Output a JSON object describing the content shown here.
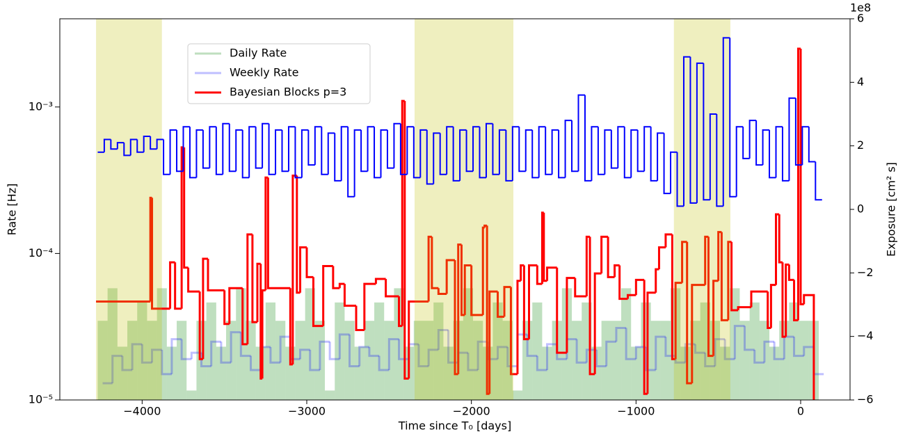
{
  "chart_data": {
    "type": "step",
    "x_label": "Time since T₀ [days]",
    "y_label": "Rate [Hz]",
    "y2_label": "Exposure [cm² s]",
    "y2_label_color": "#0000ff",
    "y2_offset_label": "1e8",
    "log_y": true,
    "xlim": [
      -4500,
      300
    ],
    "xticks": [
      {
        "value": -4000,
        "label": "−4000"
      },
      {
        "value": -3000,
        "label": "−3000"
      },
      {
        "value": -2000,
        "label": "−2000"
      },
      {
        "value": -1000,
        "label": "−1000"
      },
      0
    ],
    "ylim": [
      1e-05,
      0.004
    ],
    "yticks": [
      {
        "value": 1e-05,
        "label": "10⁻⁵"
      },
      {
        "value": 0.0001,
        "label": "10⁻⁴"
      },
      {
        "value": 0.001,
        "label": "10⁻³"
      }
    ],
    "y2lim": [
      -6,
      6
    ],
    "y2ticks": [
      {
        "value": -6,
        "label": "−6"
      },
      {
        "value": -4,
        "label": "−4"
      },
      {
        "value": -2,
        "label": "−2"
      },
      0,
      2,
      4,
      6
    ],
    "legend_loc": "upper left",
    "shade_color": "#bfbf00",
    "shade_alpha": 0.25,
    "shaded_regions": [
      [
        -4280,
        -3880
      ],
      [
        -2345,
        -1745
      ],
      [
        -770,
        -427
      ]
    ],
    "series": [
      {
        "name": "Daily Rate",
        "color": "#008000",
        "alpha": 0.25,
        "style": "fill",
        "x": [
          -4270,
          -4210,
          -4150,
          -4090,
          -4030,
          -3970,
          -3910,
          -3850,
          -3790,
          -3730,
          -3670,
          -3610,
          -3550,
          -3490,
          -3430,
          -3370,
          -3310,
          -3250,
          -3190,
          -3130,
          -3070,
          -3010,
          -2950,
          -2890,
          -2830,
          -2770,
          -2710,
          -2650,
          -2590,
          -2530,
          -2470,
          -2410,
          -2350,
          -2290,
          -2230,
          -2170,
          -2110,
          -2050,
          -1990,
          -1930,
          -1870,
          -1810,
          -1750,
          -1690,
          -1630,
          -1570,
          -1510,
          -1450,
          -1390,
          -1330,
          -1270,
          -1210,
          -1150,
          -1090,
          -1030,
          -970,
          -910,
          -850,
          -790,
          -730,
          -670,
          -610,
          -550,
          -490,
          -430,
          -370,
          -310,
          -250,
          -190,
          -130,
          -70,
          -10,
          50
        ],
        "values": [
          3.47e-05,
          5.79e-05,
          2.31e-05,
          3.47e-05,
          4.63e-05,
          3.47e-05,
          5.79e-05,
          2.31e-05,
          3.47e-05,
          1.16e-05,
          3.47e-05,
          4.63e-05,
          2.31e-05,
          3.47e-05,
          5.79e-05,
          3.47e-05,
          2.31e-05,
          4.63e-05,
          3.47e-05,
          2.31e-05,
          3.47e-05,
          5.79e-05,
          3.47e-05,
          1.16e-05,
          4.63e-05,
          3.47e-05,
          2.31e-05,
          3.47e-05,
          4.63e-05,
          3.47e-05,
          5.79e-05,
          2.31e-05,
          3.47e-05,
          3.47e-05,
          4.63e-05,
          2.31e-05,
          3.47e-05,
          5.79e-05,
          3.47e-05,
          2.31e-05,
          4.63e-05,
          3.47e-05,
          1.16e-05,
          3.47e-05,
          4.63e-05,
          2.31e-05,
          3.47e-05,
          5.79e-05,
          3.47e-05,
          4.63e-05,
          2.31e-05,
          3.47e-05,
          3.47e-05,
          5.79e-05,
          2.31e-05,
          4.63e-05,
          3.47e-05,
          3.47e-05,
          5.79e-05,
          2.31e-05,
          3.47e-05,
          4.63e-05,
          3.47e-05,
          2.31e-05,
          5.79e-05,
          3.47e-05,
          4.63e-05,
          3.47e-05,
          2.31e-05,
          3.47e-05,
          4.63e-05,
          3.47e-05,
          3.47e-05
        ]
      },
      {
        "name": "Weekly Rate",
        "color": "#0000ff",
        "alpha": 0.25,
        "style": "line",
        "x": [
          -4240,
          -4180,
          -4120,
          -4060,
          -4000,
          -3940,
          -3880,
          -3820,
          -3760,
          -3700,
          -3640,
          -3580,
          -3520,
          -3460,
          -3400,
          -3340,
          -3280,
          -3220,
          -3160,
          -3100,
          -3040,
          -2980,
          -2920,
          -2860,
          -2800,
          -2740,
          -2680,
          -2620,
          -2560,
          -2500,
          -2440,
          -2380,
          -2320,
          -2260,
          -2200,
          -2140,
          -2080,
          -2020,
          -1960,
          -1900,
          -1840,
          -1780,
          -1720,
          -1660,
          -1600,
          -1540,
          -1480,
          -1420,
          -1360,
          -1300,
          -1240,
          -1180,
          -1120,
          -1060,
          -1000,
          -940,
          -880,
          -820,
          -760,
          -700,
          -640,
          -580,
          -520,
          -460,
          -400,
          -340,
          -280,
          -220,
          -160,
          -100,
          -40,
          20,
          80
        ],
        "values": [
          1.3e-05,
          2e-05,
          1.6e-05,
          2.4e-05,
          1.8e-05,
          2.2e-05,
          1.5e-05,
          2.6e-05,
          1.9e-05,
          2.1e-05,
          1.7e-05,
          2.5e-05,
          1.8e-05,
          2.9e-05,
          2e-05,
          1.6e-05,
          2.3e-05,
          1.8e-05,
          2.7e-05,
          1.9e-05,
          2.2e-05,
          1.6e-05,
          2.5e-05,
          1.9e-05,
          2.8e-05,
          1.7e-05,
          2.3e-05,
          2e-05,
          1.6e-05,
          2.6e-05,
          1.9e-05,
          2.4e-05,
          1.7e-05,
          2.2e-05,
          3e-05,
          1.8e-05,
          2.1e-05,
          1.6e-05,
          2.5e-05,
          1.9e-05,
          2.3e-05,
          1.7e-05,
          2.8e-05,
          2e-05,
          1.6e-05,
          2.4e-05,
          1.9e-05,
          2.6e-05,
          1.8e-05,
          2.2e-05,
          1.7e-05,
          2.5e-05,
          3.1e-05,
          1.9e-05,
          2.3e-05,
          1.6e-05,
          2.7e-05,
          2e-05,
          1.8e-05,
          2.4e-05,
          2.1e-05,
          1.7e-05,
          2.6e-05,
          1.9e-05,
          3.2e-05,
          2.2e-05,
          1.8e-05,
          2.5e-05,
          1.9e-05,
          2.7e-05,
          2e-05,
          2.3e-05,
          1.5e-05
        ]
      },
      {
        "name": "Bayesian Blocks p=3",
        "color": "#ff0000",
        "alpha": 1,
        "style": "blocks",
        "edges": [
          -4280,
          -3950,
          -3940,
          -3830,
          -3800,
          -3760,
          -3745,
          -3720,
          -3650,
          -3630,
          -3600,
          -3500,
          -3470,
          -3390,
          -3360,
          -3330,
          -3300,
          -3280,
          -3270,
          -3250,
          -3235,
          -3100,
          -3085,
          -3060,
          -3040,
          -3000,
          -2960,
          -2900,
          -2840,
          -2800,
          -2770,
          -2700,
          -2650,
          -2580,
          -2520,
          -2440,
          -2420,
          -2405,
          -2380,
          -2260,
          -2240,
          -2200,
          -2150,
          -2100,
          -2080,
          -2060,
          -2040,
          -2000,
          -1930,
          -1920,
          -1905,
          -1890,
          -1840,
          -1800,
          -1760,
          -1720,
          -1700,
          -1680,
          -1650,
          -1600,
          -1570,
          -1560,
          -1540,
          -1480,
          -1420,
          -1370,
          -1300,
          -1280,
          -1250,
          -1210,
          -1170,
          -1130,
          -1100,
          -1050,
          -1000,
          -950,
          -930,
          -880,
          -860,
          -820,
          -780,
          -760,
          -720,
          -690,
          -660,
          -580,
          -560,
          -530,
          -500,
          -480,
          -440,
          -420,
          -380,
          -300,
          -200,
          -180,
          -150,
          -130,
          -110,
          -90,
          -70,
          -40,
          -15,
          0,
          20,
          80
        ],
        "values": [
          4.7e-05,
          0.00024,
          4.2e-05,
          8.7e-05,
          4.2e-05,
          0.00053,
          8e-05,
          5.5e-05,
          1.9e-05,
          9.2e-05,
          5.6e-05,
          3.3e-05,
          5.8e-05,
          2.4e-05,
          0.000135,
          3.4e-05,
          8.5e-05,
          1.4e-05,
          5.6e-05,
          0.00033,
          5.8e-05,
          1.75e-05,
          0.00034,
          5.4e-05,
          0.00011,
          6.9e-05,
          3.2e-05,
          8.2e-05,
          5.8e-05,
          6.2e-05,
          4.4e-05,
          3e-05,
          6.2e-05,
          6.7e-05,
          5.1e-05,
          3.2e-05,
          0.0011,
          1.4e-05,
          4.7e-05,
          0.00013,
          5.8e-05,
          5.3e-05,
          9e-05,
          1.5e-05,
          0.000115,
          3.8e-05,
          8.3e-05,
          3.8e-05,
          0.00015,
          0.000155,
          1.1e-05,
          5.5e-05,
          3.7e-05,
          5.9e-05,
          1.5e-05,
          6.5e-05,
          8.3e-05,
          2.6e-05,
          8.3e-05,
          6.2e-05,
          0.00019,
          6.5e-05,
          8e-05,
          2.1e-05,
          6.8e-05,
          5.1e-05,
          0.00013,
          1.5e-05,
          7.3e-05,
          0.00013,
          6.9e-05,
          8.3e-05,
          4.9e-05,
          5.2e-05,
          6.6e-05,
          1.1e-05,
          5.4e-05,
          7.8e-05,
          0.00011,
          0.000135,
          1.9e-05,
          6.3e-05,
          0.00012,
          1.3e-05,
          6.1e-05,
          0.00013,
          2e-05,
          6.5e-05,
          0.00014,
          3.5e-05,
          0.00012,
          4.1e-05,
          4.3e-05,
          5.5e-05,
          3.1e-05,
          6.1e-05,
          0.000185,
          8.7e-05,
          2.7e-05,
          8.4e-05,
          6.6e-05,
          3.5e-05,
          0.0025,
          4.5e-05,
          5.2e-05
        ]
      },
      {
        "axis": "y2",
        "color": "#0000ff",
        "alpha": 1,
        "style": "line",
        "x": [
          -4270,
          -4230,
          -4190,
          -4150,
          -4110,
          -4070,
          -4030,
          -3990,
          -3950,
          -3910,
          -3870,
          -3830,
          -3790,
          -3750,
          -3710,
          -3670,
          -3630,
          -3590,
          -3550,
          -3510,
          -3470,
          -3430,
          -3390,
          -3350,
          -3310,
          -3270,
          -3230,
          -3190,
          -3150,
          -3110,
          -3070,
          -3030,
          -2990,
          -2950,
          -2910,
          -2870,
          -2830,
          -2790,
          -2750,
          -2710,
          -2670,
          -2630,
          -2590,
          -2550,
          -2510,
          -2470,
          -2430,
          -2390,
          -2350,
          -2310,
          -2270,
          -2230,
          -2190,
          -2150,
          -2110,
          -2070,
          -2030,
          -1990,
          -1950,
          -1910,
          -1870,
          -1830,
          -1790,
          -1750,
          -1710,
          -1670,
          -1630,
          -1590,
          -1550,
          -1510,
          -1470,
          -1430,
          -1390,
          -1350,
          -1310,
          -1270,
          -1230,
          -1190,
          -1150,
          -1110,
          -1070,
          -1030,
          -990,
          -950,
          -910,
          -870,
          -830,
          -790,
          -750,
          -710,
          -670,
          -630,
          -590,
          -550,
          -510,
          -470,
          -430,
          -390,
          -350,
          -310,
          -270,
          -230,
          -190,
          -150,
          -110,
          -70,
          -30,
          10,
          50,
          90
        ],
        "values": [
          1.8,
          2.2,
          1.9,
          2.1,
          1.7,
          2.2,
          1.8,
          2.3,
          1.9,
          2.2,
          1.1,
          2.5,
          1.2,
          2.6,
          1.0,
          2.5,
          1.3,
          2.6,
          1.1,
          2.7,
          1.2,
          2.5,
          1.0,
          2.6,
          1.3,
          2.7,
          1.1,
          2.5,
          1.2,
          2.6,
          1.0,
          2.5,
          1.4,
          2.6,
          1.1,
          2.4,
          0.9,
          2.6,
          0.4,
          2.5,
          1.2,
          2.6,
          1.0,
          2.5,
          1.3,
          2.7,
          1.1,
          2.6,
          1.0,
          2.5,
          0.8,
          2.4,
          1.1,
          2.6,
          0.9,
          2.5,
          1.2,
          2.6,
          1.0,
          2.7,
          1.1,
          2.5,
          0.9,
          2.6,
          1.2,
          2.5,
          1.0,
          2.6,
          1.1,
          2.5,
          1.0,
          2.8,
          1.2,
          3.6,
          0.9,
          2.6,
          1.1,
          2.5,
          1.3,
          2.6,
          1.0,
          2.5,
          1.2,
          2.6,
          0.9,
          2.4,
          0.5,
          1.8,
          0.1,
          4.8,
          0.2,
          4.6,
          0.3,
          3.0,
          0.1,
          5.4,
          0.4,
          2.6,
          1.6,
          2.8,
          1.4,
          2.5,
          1.0,
          2.6,
          0.9,
          3.5,
          1.4,
          2.6,
          1.5,
          0.3
        ]
      }
    ]
  }
}
